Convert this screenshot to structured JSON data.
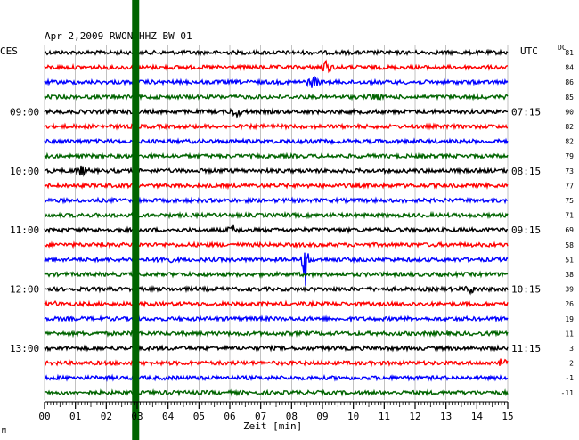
{
  "chart_data": {
    "type": "line",
    "title": "Apr 2,2009   RWON HHZ BW 01",
    "xlabel": "Zeit [min]",
    "ylabel": "",
    "left_timezone": "CES",
    "right_timezone": "UTC",
    "right_column_header": "DC",
    "x_ticks": [
      "00",
      "01",
      "02",
      "03",
      "04",
      "05",
      "06",
      "07",
      "08",
      "09",
      "10",
      "11",
      "12",
      "13",
      "14",
      "15"
    ],
    "xlim": [
      0,
      15
    ],
    "rows": 24,
    "row_colors": [
      "#000000",
      "#ff0000",
      "#0000ff",
      "#006400"
    ],
    "left_hour_labels": [
      {
        "row": 4,
        "label": "09:00"
      },
      {
        "row": 8,
        "label": "10:00"
      },
      {
        "row": 12,
        "label": "11:00"
      },
      {
        "row": 16,
        "label": "12:00"
      },
      {
        "row": 20,
        "label": "13:00"
      }
    ],
    "right_hour_labels": [
      {
        "row": 4,
        "label": "07:15"
      },
      {
        "row": 8,
        "label": "08:15"
      },
      {
        "row": 12,
        "label": "09:15"
      },
      {
        "row": 16,
        "label": "10:15"
      },
      {
        "row": 20,
        "label": "11:15"
      }
    ],
    "dc_offsets": [
      "81",
      "84",
      "86",
      "85",
      "90",
      "82",
      "82",
      "79",
      "73",
      "77",
      "75",
      "71",
      "69",
      "58",
      "51",
      "38",
      "39",
      "26",
      "19",
      "11",
      "3",
      "2",
      "-1",
      "-11"
    ],
    "marker": {
      "minute": 2.95,
      "color": "#006400"
    },
    "events": [
      {
        "row": 1,
        "minute": 9.1,
        "amp": 8
      },
      {
        "row": 2,
        "minute": 8.7,
        "amp": 8
      },
      {
        "row": 3,
        "minute": 10.7,
        "amp": 6
      },
      {
        "row": 4,
        "minute": 6.2,
        "amp": 7
      },
      {
        "row": 8,
        "minute": 1.2,
        "amp": 7
      },
      {
        "row": 12,
        "minute": 6.1,
        "amp": 6
      },
      {
        "row": 14,
        "minute": 3.9,
        "amp": 7
      },
      {
        "row": 14,
        "minute": 8.45,
        "amp": 32
      },
      {
        "row": 16,
        "minute": 13.8,
        "amp": 6
      },
      {
        "row": 17,
        "minute": 0.4,
        "amp": 4
      },
      {
        "row": 21,
        "minute": 14.8,
        "amp": 6
      }
    ]
  },
  "footer_mark": "M"
}
